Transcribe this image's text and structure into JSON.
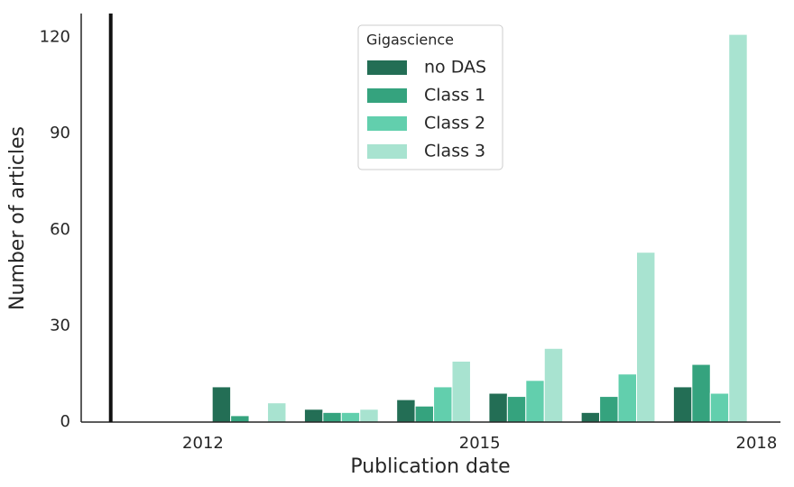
{
  "chart_data": {
    "type": "bar",
    "x": [
      2012.5,
      2013.5,
      2014.5,
      2015.5,
      2016.5,
      2017.5
    ],
    "series": [
      {
        "name": "no DAS",
        "color": "#236e55",
        "values": [
          11,
          4,
          7,
          9,
          3,
          11
        ]
      },
      {
        "name": "Class 1",
        "color": "#35a37e",
        "values": [
          2,
          3,
          5,
          8,
          8,
          18
        ]
      },
      {
        "name": "Class 2",
        "color": "#62cfad",
        "values": [
          0,
          3,
          11,
          13,
          15,
          9
        ]
      },
      {
        "name": "Class 3",
        "color": "#a8e3d0",
        "values": [
          6,
          4,
          19,
          23,
          53,
          121
        ]
      }
    ],
    "xlabel": "Publication date",
    "ylabel": "Number of articles",
    "legend_title": "Gigascience",
    "xlim": [
      2010.68,
      2018.26
    ],
    "xticks": [
      2012,
      2015,
      2018
    ],
    "ylim": [
      0,
      127.5
    ],
    "yticks": [
      0,
      30,
      60,
      90,
      120
    ],
    "vline": 2011,
    "grid": false
  }
}
